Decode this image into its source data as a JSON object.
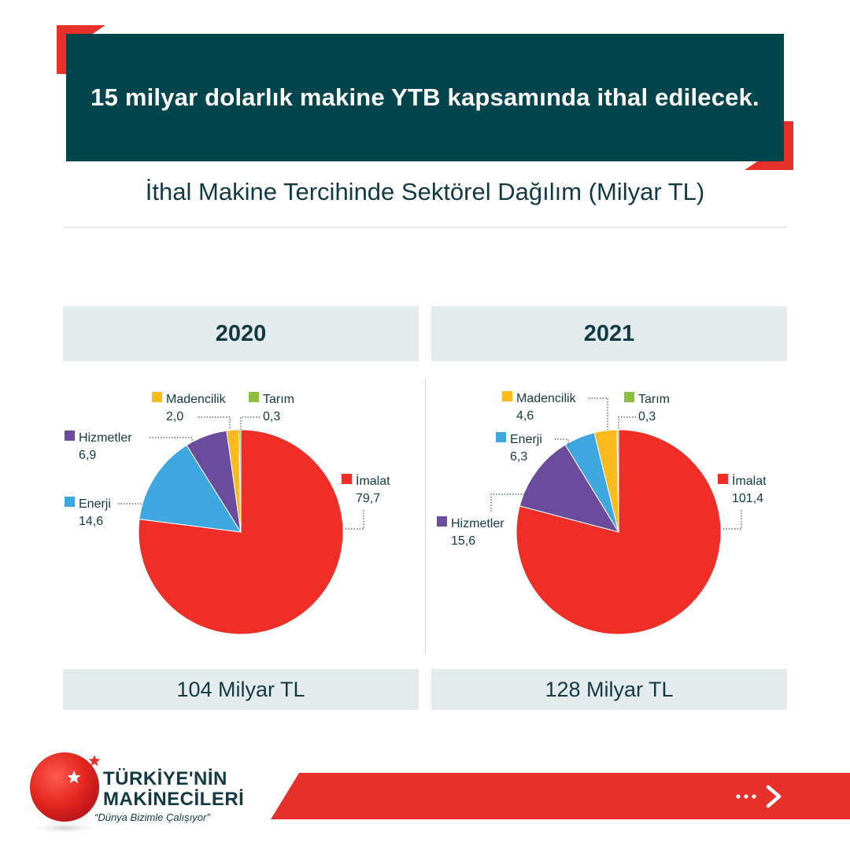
{
  "banner": {
    "title": "15 milyar dolarlık makine YTB kapsamında ithal edilecek."
  },
  "subtitle": "İthal Makine Tercihinde Sektörel Dağılım (Milyar TL)",
  "colors": {
    "imalat": "#ee2e27",
    "enerji": "#3fa7e0",
    "hizmetler": "#6a4b9c",
    "madencilik": "#fbba1b",
    "tarim": "#8dbf3e",
    "banner": "#03454d",
    "accent": "#e8302a"
  },
  "chart_data": [
    {
      "type": "pie",
      "title": "2020",
      "total_label": "104 Milyar TL",
      "slices": [
        {
          "key": "imalat",
          "name": "İmalat",
          "value": 79.7,
          "value_label": "79,7"
        },
        {
          "key": "enerji",
          "name": "Enerji",
          "value": 14.6,
          "value_label": "14,6"
        },
        {
          "key": "hizmetler",
          "name": "Hizmetler",
          "value": 6.9,
          "value_label": "6,9"
        },
        {
          "key": "madencilik",
          "name": "Madencilik",
          "value": 2.0,
          "value_label": "2,0"
        },
        {
          "key": "tarim",
          "name": "Tarım",
          "value": 0.3,
          "value_label": "0,3"
        }
      ]
    },
    {
      "type": "pie",
      "title": "2021",
      "total_label": "128 Milyar TL",
      "slices": [
        {
          "key": "imalat",
          "name": "İmalat",
          "value": 101.4,
          "value_label": "101,4"
        },
        {
          "key": "hizmetler",
          "name": "Hizmetler",
          "value": 15.6,
          "value_label": "15,6"
        },
        {
          "key": "enerji",
          "name": "Enerji",
          "value": 6.3,
          "value_label": "6,3"
        },
        {
          "key": "madencilik",
          "name": "Madencilik",
          "value": 4.6,
          "value_label": "4,6"
        },
        {
          "key": "tarim",
          "name": "Tarım",
          "value": 0.3,
          "value_label": "0,3"
        }
      ]
    }
  ],
  "brand": {
    "line1": "TÜRKİYE'NİN",
    "line2": "MAKİNECİLERİ",
    "slogan": "“Dünya Bizimle Çalışıyor”"
  },
  "footer": {
    "arrow_icon": "arrow-right-icon"
  }
}
